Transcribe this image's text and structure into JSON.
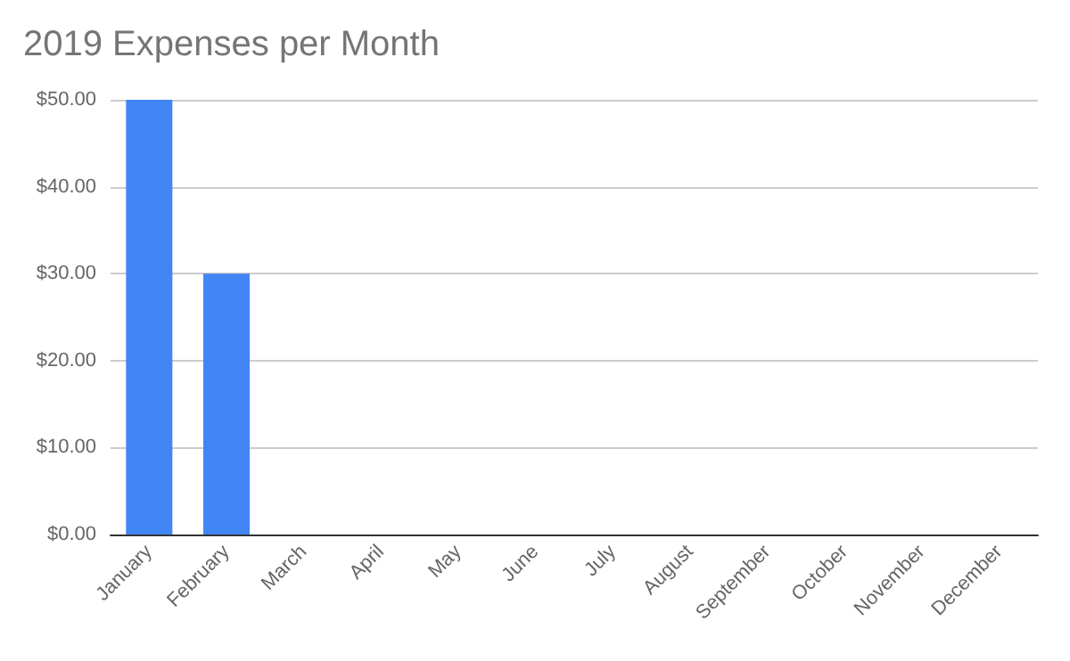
{
  "chart_data": {
    "type": "bar",
    "title": "2019 Expenses per Month",
    "categories": [
      "January",
      "February",
      "March",
      "April",
      "May",
      "June",
      "July",
      "August",
      "September",
      "October",
      "November",
      "December"
    ],
    "values": [
      50,
      30,
      0,
      0,
      0,
      0,
      0,
      0,
      0,
      0,
      0,
      0
    ],
    "color": "#4285f4",
    "ylim": [
      0,
      50
    ],
    "yticks": [
      {
        "value": 0,
        "label": "$0.00"
      },
      {
        "value": 10,
        "label": "$10.00"
      },
      {
        "value": 20,
        "label": "$20.00"
      },
      {
        "value": 30,
        "label": "$30.00"
      },
      {
        "value": 40,
        "label": "$40.00"
      },
      {
        "value": 50,
        "label": "$50.00"
      }
    ],
    "grid": "y"
  }
}
